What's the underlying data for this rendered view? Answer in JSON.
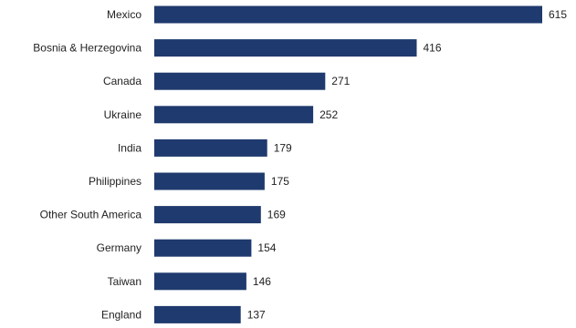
{
  "chart_data": {
    "type": "bar",
    "orientation": "horizontal",
    "categories": [
      "Mexico",
      "Bosnia & Herzegovina",
      "Canada",
      "Ukraine",
      "India",
      "Philippines",
      "Other South America",
      "Germany",
      "Taiwan",
      "England"
    ],
    "values": [
      615,
      416,
      271,
      252,
      179,
      175,
      169,
      154,
      146,
      137
    ],
    "value_labels": [
      "615",
      "416",
      "271",
      "252",
      "179",
      "175",
      "169",
      "154",
      "146",
      "137"
    ],
    "xlim": [
      0,
      615
    ],
    "bar_color": "#1f3a6e",
    "grid": false,
    "legend": "none",
    "title": "",
    "xlabel": "",
    "ylabel": ""
  }
}
